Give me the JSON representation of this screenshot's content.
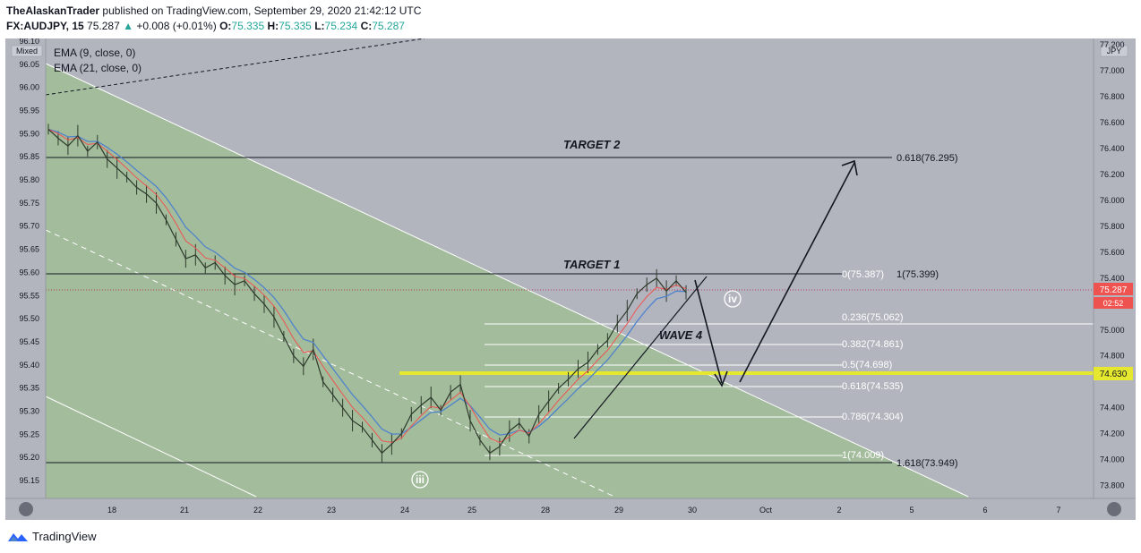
{
  "header": {
    "author": "TheAlaskanTrader",
    "published": "published on TradingView.com, September 29, 2020 21:42:12 UTC",
    "symbol": "FX:AUDJPY, 15",
    "last": "75.287",
    "change": "+0.008 (+0.01%)",
    "o_label": "O:",
    "o": "75.335",
    "h_label": "H:",
    "h": "75.335",
    "l_label": "L:",
    "l": "75.234",
    "c_label": "C:",
    "c": "75.287"
  },
  "left_axis_mode": "Mixed",
  "right_axis_unit": "JPY",
  "indicators": [
    "EMA (9, close, 0)",
    "EMA (21, close, 0)"
  ],
  "footer": {
    "brand": "TradingView"
  },
  "colors": {
    "pane": "#b2b5be",
    "channel": "#a3bc9c",
    "price_tag": "#ef5350",
    "highlight": "#e5e82f",
    "candle": "#2d3a2b",
    "ema9": "#ef5350",
    "ema21": "#4f83cc"
  },
  "chart_data": {
    "type": "line",
    "title": "",
    "price_scale": "linear",
    "left_axis": {
      "ticks": [
        "96.10",
        "96.05",
        "96.00",
        "95.95",
        "95.90",
        "95.85",
        "95.80",
        "95.75",
        "95.70",
        "95.65",
        "95.60",
        "95.55",
        "95.50",
        "95.45",
        "95.40",
        "95.35",
        "95.30",
        "95.25",
        "95.20",
        "95.15"
      ]
    },
    "right_axis": {
      "ticks": [
        "77.200",
        "77.000",
        "76.800",
        "76.600",
        "76.400",
        "76.200",
        "76.000",
        "75.800",
        "75.600",
        "75.400",
        "75.000",
        "74.800",
        "74.400",
        "74.200",
        "74.000",
        "73.800"
      ],
      "ylim": [
        73.7,
        77.25
      ]
    },
    "x_ticks": [
      "18",
      "21",
      "22",
      "23",
      "24",
      "25",
      "28",
      "29",
      "30",
      "Oct",
      "2",
      "5",
      "6",
      "7"
    ],
    "series": [
      {
        "values": [
          76.55,
          76.48,
          76.42,
          76.5,
          76.38,
          76.45,
          76.32,
          76.25,
          76.18,
          76.1,
          76.05,
          75.98,
          75.85,
          75.7,
          75.55,
          75.58,
          75.48,
          75.52,
          75.42,
          75.35,
          75.38,
          75.28,
          75.2,
          75.1,
          74.95,
          74.8,
          74.72,
          74.85,
          74.6,
          74.5,
          74.4,
          74.3,
          74.25,
          74.15,
          74.05,
          74.12,
          74.2,
          74.35,
          74.42,
          74.48,
          74.38,
          74.52,
          74.58,
          74.3,
          74.15,
          74.05,
          74.1,
          74.22,
          74.28,
          74.18,
          74.35,
          74.45,
          74.55,
          74.62,
          74.7,
          74.75,
          74.85,
          74.92,
          75.05,
          75.15,
          75.28,
          75.35,
          75.4,
          75.3,
          75.38,
          75.29
        ]
      }
    ],
    "price_labels": {
      "last": "75.287",
      "countdown": "02:52",
      "level": "74.630"
    },
    "fibonacci": [
      {
        "label": "0(75.387)",
        "value": 75.387
      },
      {
        "label": "0.236(75.062)",
        "value": 75.062
      },
      {
        "label": "0.382(74.861)",
        "value": 74.861
      },
      {
        "label": "0.5(74.698)",
        "value": 74.698
      },
      {
        "label": "0.618(74.535)",
        "value": 74.535
      },
      {
        "label": "0.786(74.304)",
        "value": 74.304
      },
      {
        "label": "1(74.009)",
        "value": 74.009
      }
    ],
    "extensions": [
      {
        "label": "1(75.399)",
        "value": 75.399
      },
      {
        "label": "1.618(73.949)",
        "value": 73.949
      },
      {
        "label": "0.618(76.295)",
        "value": 76.295
      }
    ],
    "annotations": [
      "TARGET 2",
      "TARGET 1",
      "WAVE 4",
      "iv",
      "iii"
    ],
    "legend": "top-left",
    "grid": false
  }
}
